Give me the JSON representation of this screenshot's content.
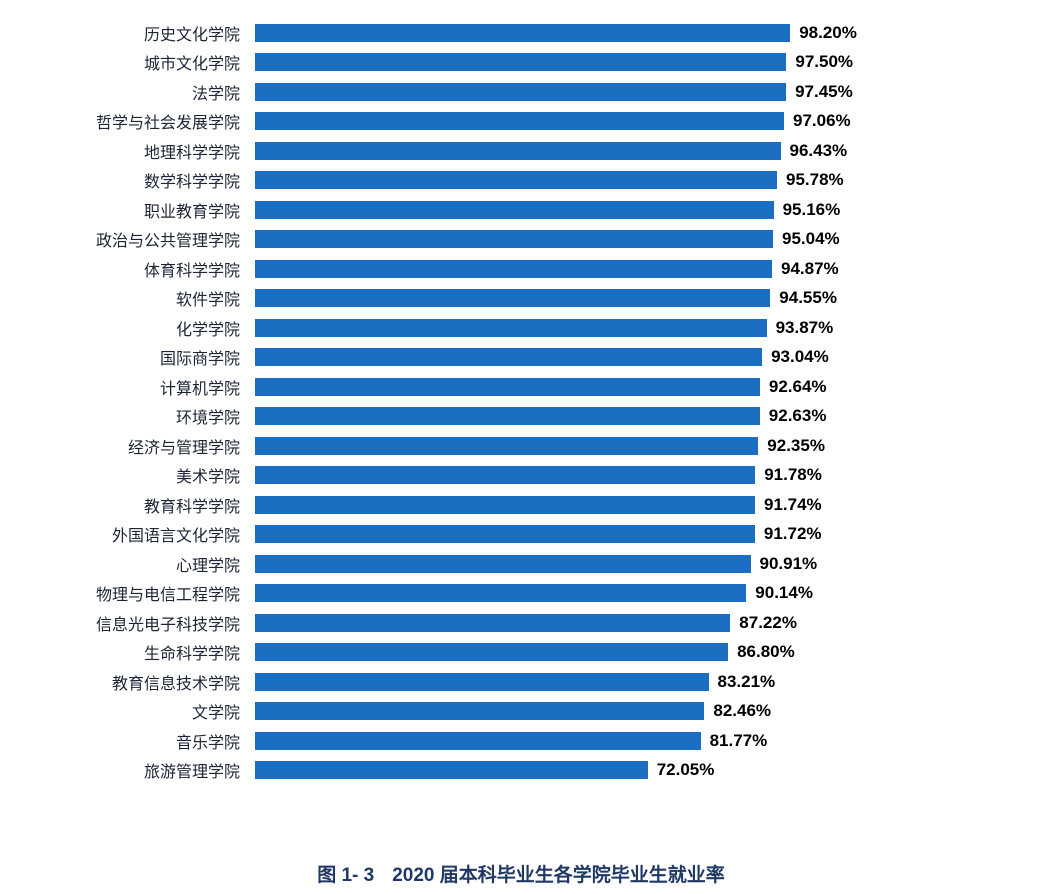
{
  "chart_data": {
    "type": "bar",
    "orientation": "horizontal",
    "title": "图 1- 3 2020 届本科毕业生各学院毕业生就业率",
    "xlabel": "",
    "ylabel": "",
    "xlim": [
      0,
      100
    ],
    "grid": false,
    "legend": false,
    "bar_color": "#1b6ec2",
    "value_label_format": "0.00%",
    "categories": [
      "历史文化学院",
      "城市文化学院",
      "法学院",
      "哲学与社会发展学院",
      "地理科学学院",
      "数学科学学院",
      "职业教育学院",
      "政治与公共管理学院",
      "体育科学学院",
      "软件学院",
      "化学学院",
      "国际商学院",
      "计算机学院",
      "环境学院",
      "经济与管理学院",
      "美术学院",
      "教育科学学院",
      "外国语言文化学院",
      "心理学院",
      "物理与电信工程学院",
      "信息光电子科技学院",
      "生命科学学院",
      "教育信息技术学院",
      "文学院",
      "音乐学院",
      "旅游管理学院"
    ],
    "values": [
      98.2,
      97.5,
      97.45,
      97.06,
      96.43,
      95.78,
      95.16,
      95.04,
      94.87,
      94.55,
      93.87,
      93.04,
      92.64,
      92.63,
      92.35,
      91.78,
      91.74,
      91.72,
      90.91,
      90.14,
      87.22,
      86.8,
      83.21,
      82.46,
      81.77,
      72.05
    ],
    "value_labels": [
      "98.20%",
      "97.50%",
      "97.45%",
      "97.06%",
      "96.43%",
      "95.78%",
      "95.16%",
      "95.04%",
      "94.87%",
      "94.55%",
      "93.87%",
      "93.04%",
      "92.64%",
      "92.63%",
      "92.35%",
      "91.78%",
      "91.74%",
      "91.72%",
      "90.91%",
      "90.14%",
      "87.22%",
      "86.80%",
      "83.21%",
      "82.46%",
      "81.77%",
      "72.05%"
    ]
  },
  "caption": {
    "figure_no": "图 1- 3",
    "text": "2020 届本科毕业生各学院毕业生就业率"
  }
}
